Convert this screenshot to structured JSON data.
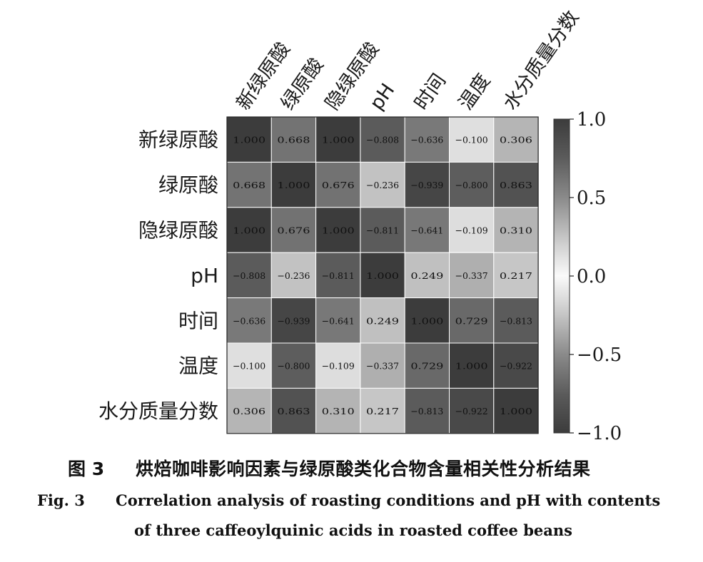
{
  "chart_data": {
    "type": "heatmap",
    "row_labels": [
      "新绿原酸",
      "绿原酸",
      "隐绿原酸",
      "pH",
      "时间",
      "温度",
      "水分质量分数"
    ],
    "col_labels": [
      "新绿原酸",
      "绿原酸",
      "隐绿原酸",
      "pH",
      "时间",
      "温度",
      "水分质量分数"
    ],
    "values": [
      [
        1.0,
        0.668,
        1.0,
        -0.808,
        -0.636,
        -0.1,
        0.306
      ],
      [
        0.668,
        1.0,
        0.676,
        -0.236,
        -0.939,
        -0.8,
        0.863
      ],
      [
        1.0,
        0.676,
        1.0,
        -0.811,
        -0.641,
        -0.109,
        0.31
      ],
      [
        -0.808,
        -0.236,
        -0.811,
        1.0,
        0.249,
        -0.337,
        0.217
      ],
      [
        -0.636,
        -0.939,
        -0.641,
        0.249,
        1.0,
        0.729,
        -0.813
      ],
      [
        -0.1,
        -0.8,
        -0.109,
        -0.337,
        0.729,
        1.0,
        -0.922
      ],
      [
        0.306,
        0.863,
        0.31,
        0.217,
        -0.813,
        -0.922,
        1.0
      ]
    ],
    "cell_labels": [
      [
        "1.000",
        "0.668",
        "1.000",
        "−0.808",
        "−0.636",
        "−0.100",
        "0.306"
      ],
      [
        "0.668",
        "1.000",
        "0.676",
        "−0.236",
        "−0.939",
        "−0.800",
        "0.863"
      ],
      [
        "1.000",
        "0.676",
        "1.000",
        "−0.811",
        "−0.641",
        "−0.109",
        "0.310"
      ],
      [
        "−0.808",
        "−0.236",
        "−0.811",
        "1.000",
        "0.249",
        "−0.337",
        "0.217"
      ],
      [
        "−0.636",
        "−0.939",
        "−0.641",
        "0.249",
        "1.000",
        "0.729",
        "−0.813"
      ],
      [
        "−0.100",
        "−0.800",
        "−0.109",
        "−0.337",
        "0.729",
        "1.000",
        "−0.922"
      ],
      [
        "0.306",
        "0.863",
        "0.310",
        "0.217",
        "−0.813",
        "−0.922",
        "1.000"
      ]
    ],
    "vmin": -1.0,
    "vmax": 1.0,
    "colormap": "gray, |r| → darker",
    "colorbar_ticks": [
      1.0,
      0.5,
      0.0,
      -0.5,
      -1.0
    ],
    "colorbar_tick_labels": [
      "1.0",
      "0.5",
      "0.0",
      "−0.5",
      "−1.0"
    ],
    "colorbar_position": "right",
    "grid": false
  },
  "caption": {
    "cn_number": "图 3",
    "cn_title": "烘焙咖啡影响因素与绿原酸类化合物含量相关性分析结果",
    "en_number": "Fig. 3",
    "en_title_line1": "Correlation analysis of roasting conditions and pH with contents",
    "en_title_line2": "of three caffeoylquinic acids in roasted coffee beans"
  },
  "colors": {
    "cell_border": "#ffffff",
    "frame": "#222222",
    "text_dark": "#111111",
    "text_light": "#f2f2f2"
  }
}
